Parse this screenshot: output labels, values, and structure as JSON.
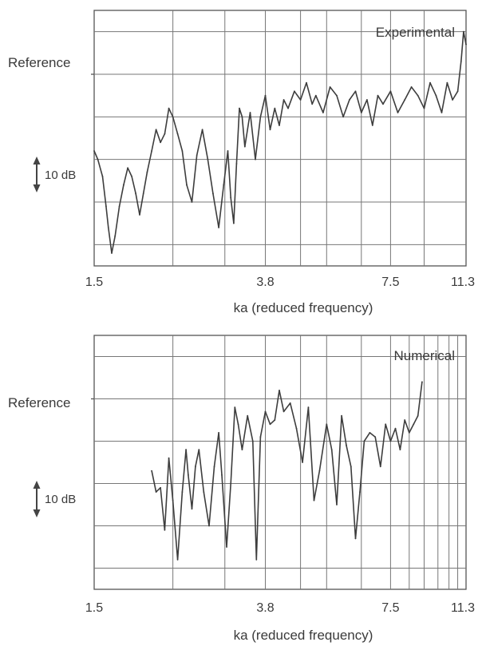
{
  "chart_data": [
    {
      "type": "line",
      "title": "",
      "panel_label": "Experimental",
      "xlabel": "ka  (reduced frequency)",
      "ylabel": "",
      "reference_label": "Reference",
      "scale_label": "10 dB",
      "xscale": "log",
      "xlim": [
        1.5,
        11.3
      ],
      "ylim": [
        -45,
        15
      ],
      "x_ticks": [
        1.5,
        3.8,
        7.5,
        11.3
      ],
      "x_tick_labels": [
        "1.5",
        "3.8",
        "7.5",
        "11.3"
      ],
      "x_gridlines": [
        2.3,
        3.05,
        3.8,
        4.6,
        5.3,
        6.4,
        7.5,
        9.0
      ],
      "y_gridlines": [
        10,
        0,
        -10,
        -20,
        -30,
        -40
      ],
      "reference_level": 0,
      "scale_bar_db": 10,
      "grid": true,
      "series": [
        {
          "x": [
            1.5,
            1.53,
            1.57,
            1.6,
            1.62,
            1.65,
            1.68,
            1.72,
            1.76,
            1.8,
            1.84,
            1.88,
            1.92,
            1.96,
            2.0,
            2.05,
            2.1,
            2.15,
            2.2,
            2.25,
            2.3,
            2.36,
            2.42,
            2.48,
            2.55,
            2.62,
            2.7,
            2.78,
            2.86,
            2.95,
            3.03,
            3.1,
            3.15,
            3.2,
            3.25,
            3.3,
            3.35,
            3.4,
            3.5,
            3.6,
            3.7,
            3.8,
            3.9,
            4.0,
            4.1,
            4.2,
            4.3,
            4.45,
            4.6,
            4.75,
            4.9,
            5.0,
            5.2,
            5.4,
            5.6,
            5.8,
            6.0,
            6.2,
            6.4,
            6.6,
            6.8,
            7.0,
            7.2,
            7.5,
            7.8,
            8.1,
            8.4,
            8.7,
            9.0,
            9.3,
            9.6,
            9.9,
            10.2,
            10.5,
            10.8,
            11.0,
            11.15,
            11.3
          ],
          "y": [
            -18,
            -20,
            -24,
            -31,
            -36,
            -42,
            -38,
            -31,
            -26,
            -22,
            -24,
            -28,
            -33,
            -28,
            -23,
            -18,
            -13,
            -16,
            -14,
            -8,
            -10,
            -14,
            -18,
            -26,
            -30,
            -19,
            -13,
            -20,
            -28,
            -36,
            -26,
            -18,
            -29,
            -35,
            -21,
            -8,
            -10,
            -17,
            -9,
            -20,
            -10,
            -5,
            -13,
            -8,
            -12,
            -6,
            -8,
            -4,
            -6,
            -2,
            -7,
            -5,
            -9,
            -3,
            -5,
            -10,
            -6,
            -4,
            -9,
            -6,
            -12,
            -5,
            -7,
            -4,
            -9,
            -6,
            -3,
            -5,
            -8,
            -2,
            -5,
            -9,
            -2,
            -6,
            -4,
            3,
            10,
            7
          ]
        }
      ]
    },
    {
      "type": "line",
      "title": "",
      "panel_label": "Numerical",
      "xlabel": "ka (reduced frequency)",
      "ylabel": "",
      "reference_label": "Reference",
      "scale_label": "10 dB",
      "xscale": "log",
      "xlim": [
        1.5,
        11.3
      ],
      "ylim": [
        -45,
        15
      ],
      "x_ticks": [
        1.5,
        3.8,
        7.5,
        11.3
      ],
      "x_tick_labels": [
        "1.5",
        "3.8",
        "7.5",
        "11.3"
      ],
      "x_gridlines": [
        2.3,
        3.05,
        3.8,
        4.6,
        5.3,
        6.4,
        7.5,
        8.3,
        9.0,
        9.7,
        10.3,
        10.8
      ],
      "y_gridlines": [
        10,
        0,
        -10,
        -20,
        -30,
        -40
      ],
      "reference_level": 0,
      "scale_bar_db": 10,
      "grid": true,
      "series": [
        {
          "x": [
            2.05,
            2.1,
            2.15,
            2.2,
            2.25,
            2.3,
            2.36,
            2.42,
            2.47,
            2.5,
            2.55,
            2.6,
            2.65,
            2.72,
            2.8,
            2.88,
            2.95,
            3.0,
            3.08,
            3.15,
            3.22,
            3.28,
            3.35,
            3.45,
            3.55,
            3.62,
            3.7,
            3.8,
            3.9,
            4.0,
            4.1,
            4.2,
            4.35,
            4.5,
            4.65,
            4.8,
            4.95,
            5.1,
            5.3,
            5.45,
            5.6,
            5.75,
            5.9,
            6.05,
            6.2,
            6.35,
            6.5,
            6.7,
            6.9,
            7.1,
            7.3,
            7.5,
            7.7,
            7.9,
            8.1,
            8.3,
            8.5,
            8.7,
            8.9
          ],
          "y": [
            -17,
            -22,
            -21,
            -31,
            -14,
            -24,
            -38,
            -22,
            -12,
            -18,
            -26,
            -16,
            -12,
            -22,
            -30,
            -16,
            -8,
            -18,
            -35,
            -20,
            -2,
            -6,
            -12,
            -4,
            -10,
            -38,
            -9,
            -3,
            -6,
            -5,
            2,
            -3,
            -1,
            -7,
            -15,
            -2,
            -24,
            -17,
            -6,
            -12,
            -25,
            -4,
            -11,
            -16,
            -33,
            -22,
            -10,
            -8,
            -9,
            -16,
            -6,
            -10,
            -7,
            -12,
            -5,
            -8,
            -6,
            -4,
            4
          ]
        }
      ]
    }
  ]
}
